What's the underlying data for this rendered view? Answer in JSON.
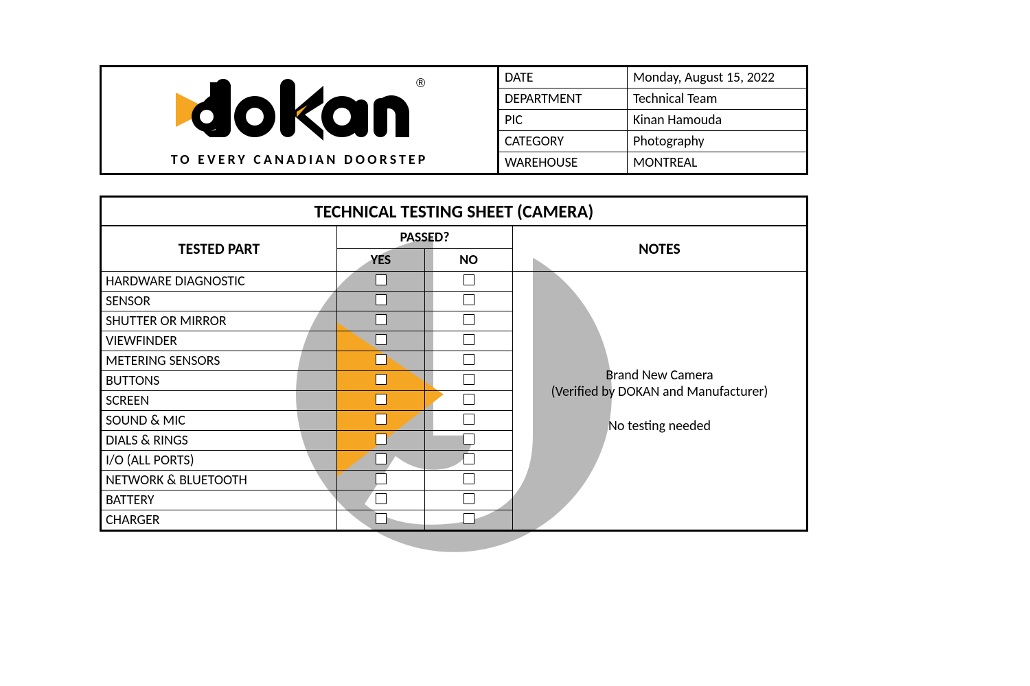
{
  "logo": {
    "tagline": "TO EVERY CANADIAN DOORSTEP",
    "brand_black": "#000000",
    "brand_orange": "#f5a623",
    "reg_mark": "®"
  },
  "meta": {
    "labels": {
      "date": "DATE",
      "department": "DEPARTMENT",
      "pic": "PIC",
      "category": "CATEGORY",
      "warehouse": "WAREHOUSE"
    },
    "values": {
      "date": "Monday, August 15, 2022",
      "department": "Technical Team",
      "pic": "Kinan Hamouda",
      "category": "Photography",
      "warehouse": "MONTREAL"
    }
  },
  "sheet": {
    "title": "TECHNICAL TESTING SHEET (CAMERA)",
    "headers": {
      "tested_part": "TESTED PART",
      "passed": "PASSED?",
      "yes": "YES",
      "no": "NO",
      "notes": "NOTES"
    },
    "parts": [
      "HARDWARE DIAGNOSTIC",
      "SENSOR",
      "SHUTTER OR MIRROR",
      "VIEWFINDER",
      "METERING SENSORS",
      "BUTTONS",
      "SCREEN",
      "SOUND & MIC",
      "DIALS & RINGS",
      "I/O (ALL PORTS)",
      "NETWORK & BLUETOOTH",
      "BATTERY",
      "CHARGER"
    ],
    "notes_lines": [
      "Brand New Camera",
      "(Verified by DOKAN and Manufacturer)",
      "",
      "No testing needed"
    ]
  },
  "watermark": {
    "grey": "#b0b0b0",
    "orange": "#f5a623",
    "white": "#ffffff"
  }
}
